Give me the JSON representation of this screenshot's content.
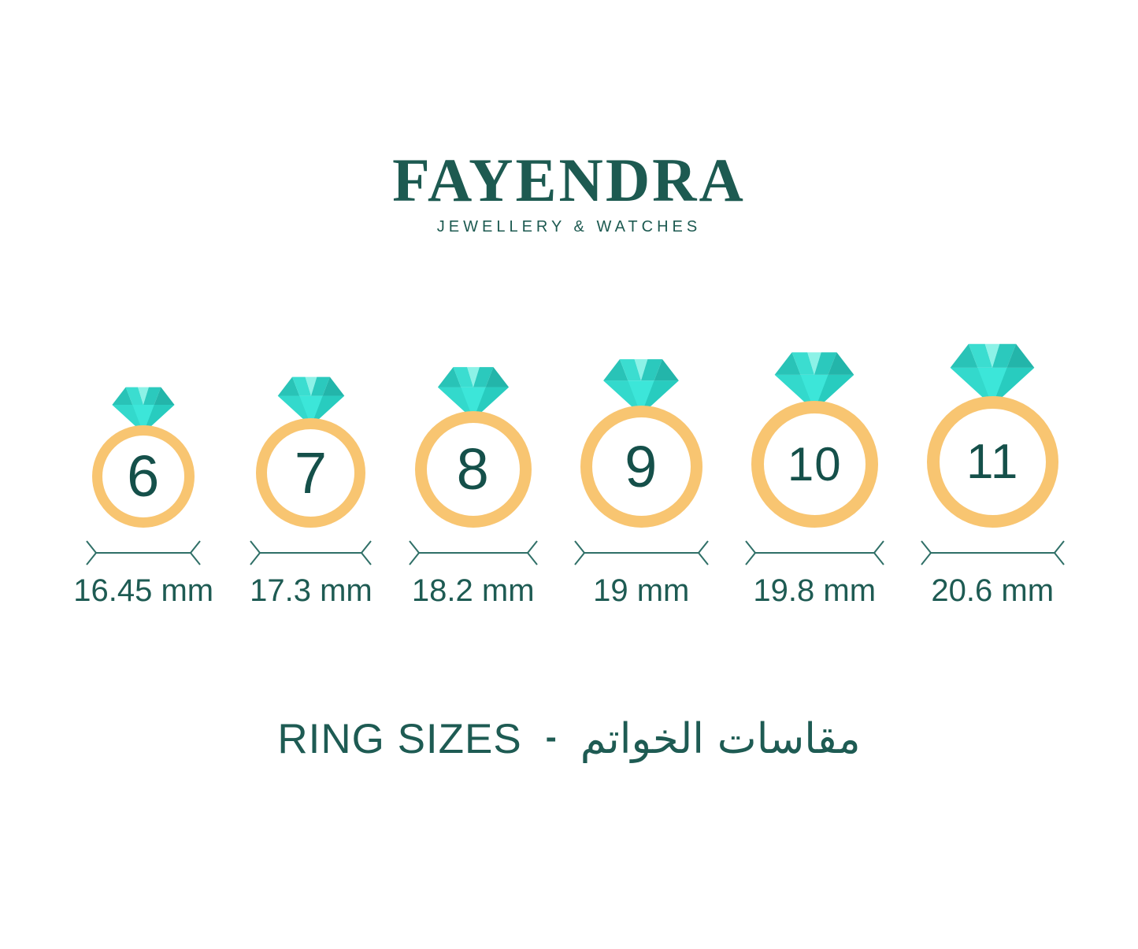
{
  "brand": {
    "name": "FAYENDRA",
    "tagline": "JEWELLERY & WATCHES"
  },
  "rings": [
    {
      "size": "6",
      "diameter_label": "16.45 mm"
    },
    {
      "size": "7",
      "diameter_label": "17.3 mm"
    },
    {
      "size": "8",
      "diameter_label": "18.2 mm"
    },
    {
      "size": "9",
      "diameter_label": "19 mm"
    },
    {
      "size": "10",
      "diameter_label": "19.8 mm"
    },
    {
      "size": "11",
      "diameter_label": "20.6 mm"
    }
  ],
  "footer": {
    "title_en": "RING SIZES",
    "separator": "-",
    "title_ar": "مقاسات الخواتم"
  },
  "colors": {
    "brand_green": "#1D5A51",
    "text_teal": "#1E5B53",
    "number_teal": "#15504A",
    "band_gold": "#F8C571",
    "arrow_teal": "#2F6F67",
    "diamond_bright": "#3CE6D9",
    "diamond_light": "#8CF2E7",
    "diamond_medium": "#2FD3C6",
    "diamond_dark": "#23B5AA"
  }
}
